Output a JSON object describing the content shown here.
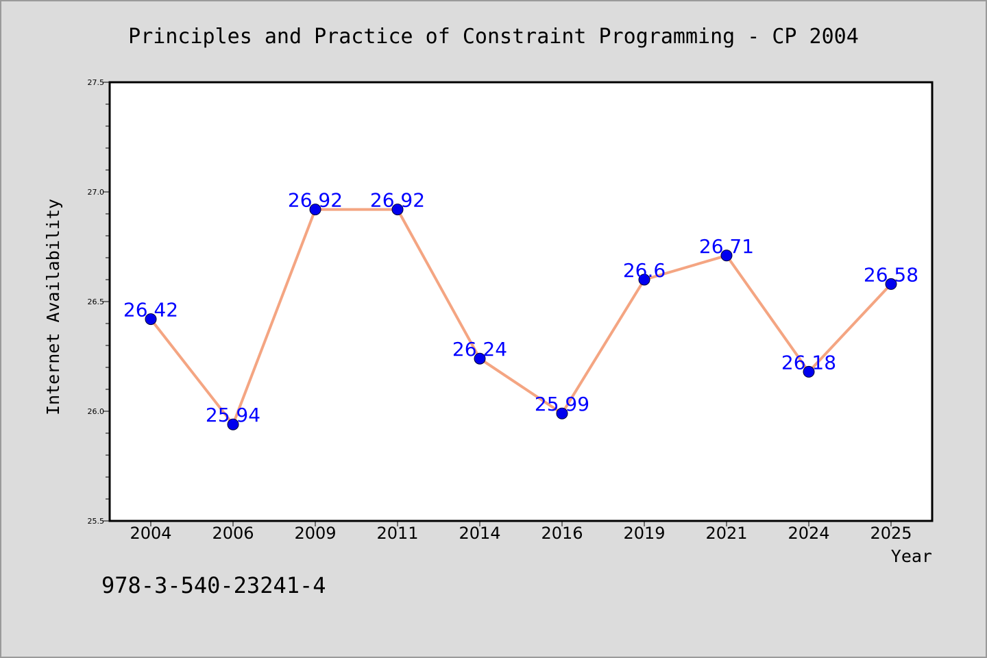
{
  "chart_data": {
    "type": "line",
    "title": "Principles and Practice of Constraint Programming - CP 2004",
    "xlabel": "Year",
    "ylabel": "Internet Availability",
    "categories": [
      "2004",
      "2006",
      "2009",
      "2011",
      "2014",
      "2016",
      "2019",
      "2021",
      "2024",
      "2025"
    ],
    "series": [
      {
        "values": [
          26.42,
          25.94,
          26.92,
          26.92,
          26.24,
          25.99,
          26.6,
          26.71,
          26.18,
          26.58
        ],
        "data_labels": [
          "26.42",
          "25.94",
          "26.92",
          "26.92",
          "26.24",
          "25.99",
          "26.6",
          "26.71",
          "26.18",
          "26.58"
        ],
        "line_color": "#f4a582",
        "marker_color": "#0000ee",
        "label_color": "#0000ff"
      }
    ],
    "ylim": [
      25.5,
      27.5
    ],
    "yticks": [
      "25.5",
      "26.0",
      "26.5",
      "27.0",
      "27.5"
    ],
    "grid": false,
    "legend": "none"
  },
  "footnote": "978-3-540-23241-4",
  "colors": {
    "background": "#dcdcdc",
    "plot_background": "#ffffff"
  }
}
